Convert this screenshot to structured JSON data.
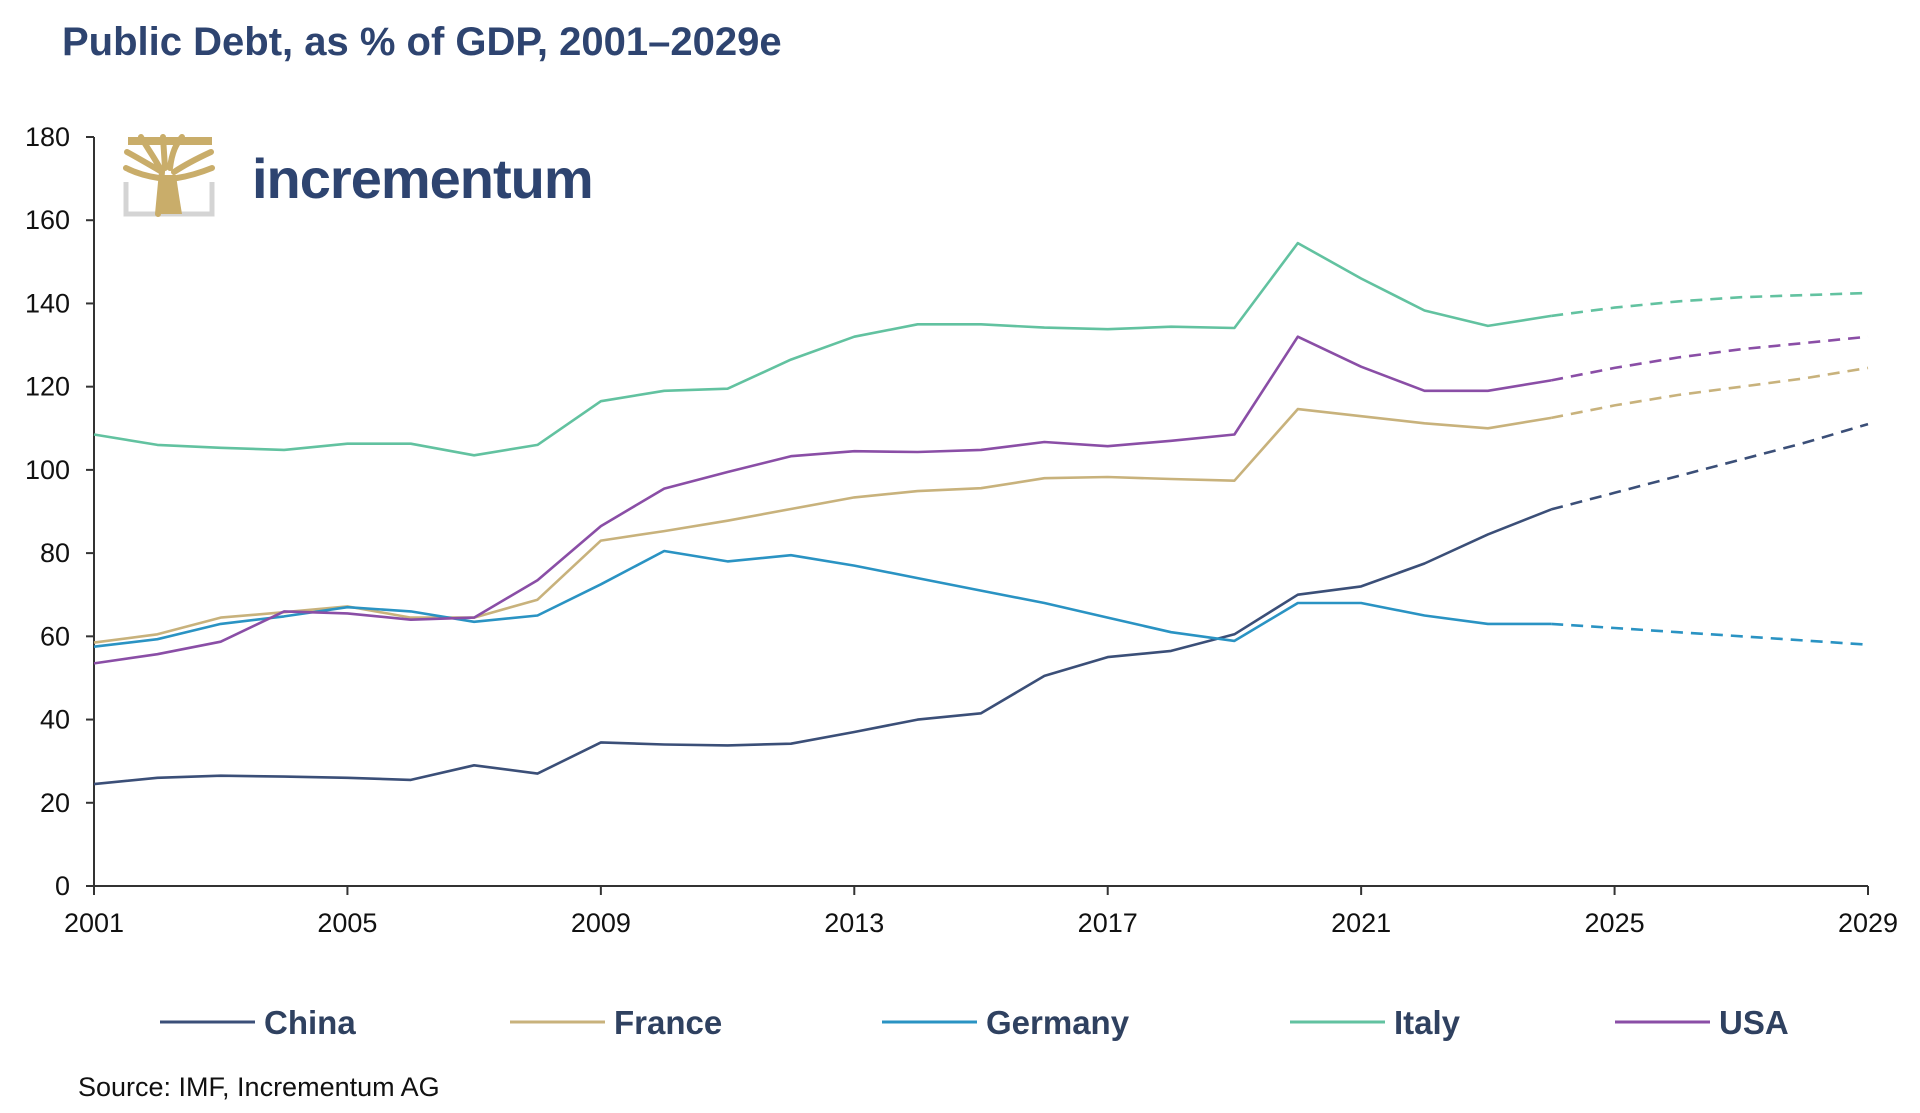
{
  "title": "Public Debt, as % of GDP, 2001–2029e",
  "source": "Source: IMF, Incrementum AG",
  "logo": {
    "name": "incrementum",
    "icon": "tree-icon",
    "color": "#c9ad6a"
  },
  "chart_data": {
    "type": "line",
    "title": "Public Debt, as % of GDP, 2001–2029e",
    "xlabel": "",
    "ylabel": "",
    "xlim": [
      2001,
      2029
    ],
    "ylim": [
      0,
      180
    ],
    "x_ticks": [
      2001,
      2005,
      2009,
      2013,
      2017,
      2021,
      2025,
      2029
    ],
    "y_ticks": [
      0,
      20,
      40,
      60,
      80,
      100,
      120,
      140,
      160,
      180
    ],
    "grid": false,
    "legend_position": "bottom",
    "actual_years": [
      2001,
      2002,
      2003,
      2004,
      2005,
      2006,
      2007,
      2008,
      2009,
      2010,
      2011,
      2012,
      2013,
      2014,
      2015,
      2016,
      2017,
      2018,
      2019,
      2020,
      2021,
      2022,
      2023,
      2024
    ],
    "forecast_years": [
      2024,
      2025,
      2026,
      2027,
      2028,
      2029
    ],
    "series": [
      {
        "name": "China",
        "color": "#3b4f78",
        "values": [
          24.5,
          26,
          26.5,
          26.3,
          26,
          25.5,
          29,
          27,
          34.5,
          34,
          33.8,
          34.2,
          37,
          40,
          41.5,
          50.5,
          55,
          56.5,
          60.5,
          70,
          72,
          77.5,
          84.5,
          90.5
        ],
        "forecast": [
          90.5,
          94.5,
          98.5,
          102.5,
          106.5,
          111
        ]
      },
      {
        "name": "France",
        "color": "#c8b27c",
        "values": [
          58.5,
          60.5,
          64.5,
          65.8,
          67.2,
          64.5,
          64.5,
          68.8,
          83,
          85.3,
          87.8,
          90.6,
          93.4,
          94.9,
          95.6,
          98,
          98.3,
          97.8,
          97.4,
          114.6,
          112.9,
          111.2,
          110,
          112.5
        ],
        "forecast": [
          112.5,
          115.5,
          118,
          120,
          122,
          124.5
        ]
      },
      {
        "name": "Germany",
        "color": "#2a93c3",
        "values": [
          57.5,
          59.3,
          63,
          64.8,
          67,
          66,
          63.5,
          65,
          72.5,
          80.5,
          78,
          79.5,
          77,
          74,
          71,
          68,
          64.5,
          61,
          58.9,
          68,
          68,
          65,
          63,
          63
        ],
        "forecast": [
          63,
          62,
          61,
          60,
          59,
          58
        ]
      },
      {
        "name": "Italy",
        "color": "#62c2a0",
        "values": [
          108.5,
          106,
          105.3,
          104.8,
          106.3,
          106.3,
          103.5,
          106,
          116.5,
          119,
          119.5,
          126.5,
          132,
          135,
          135,
          134.2,
          133.8,
          134.4,
          134.1,
          154.5,
          146,
          138.3,
          134.6,
          137
        ],
        "forecast": [
          137,
          139,
          140.5,
          141.5,
          142,
          142.5
        ]
      },
      {
        "name": "USA",
        "color": "#8a4ea6",
        "values": [
          53.5,
          55.7,
          58.7,
          66,
          65.5,
          64,
          64.5,
          73.5,
          86.5,
          95.5,
          99.5,
          103.3,
          104.5,
          104.3,
          104.8,
          106.7,
          105.7,
          107,
          108.5,
          132,
          124.8,
          119,
          119,
          121.5
        ],
        "forecast": [
          121.5,
          124.5,
          127,
          129,
          130.5,
          132
        ]
      }
    ]
  }
}
